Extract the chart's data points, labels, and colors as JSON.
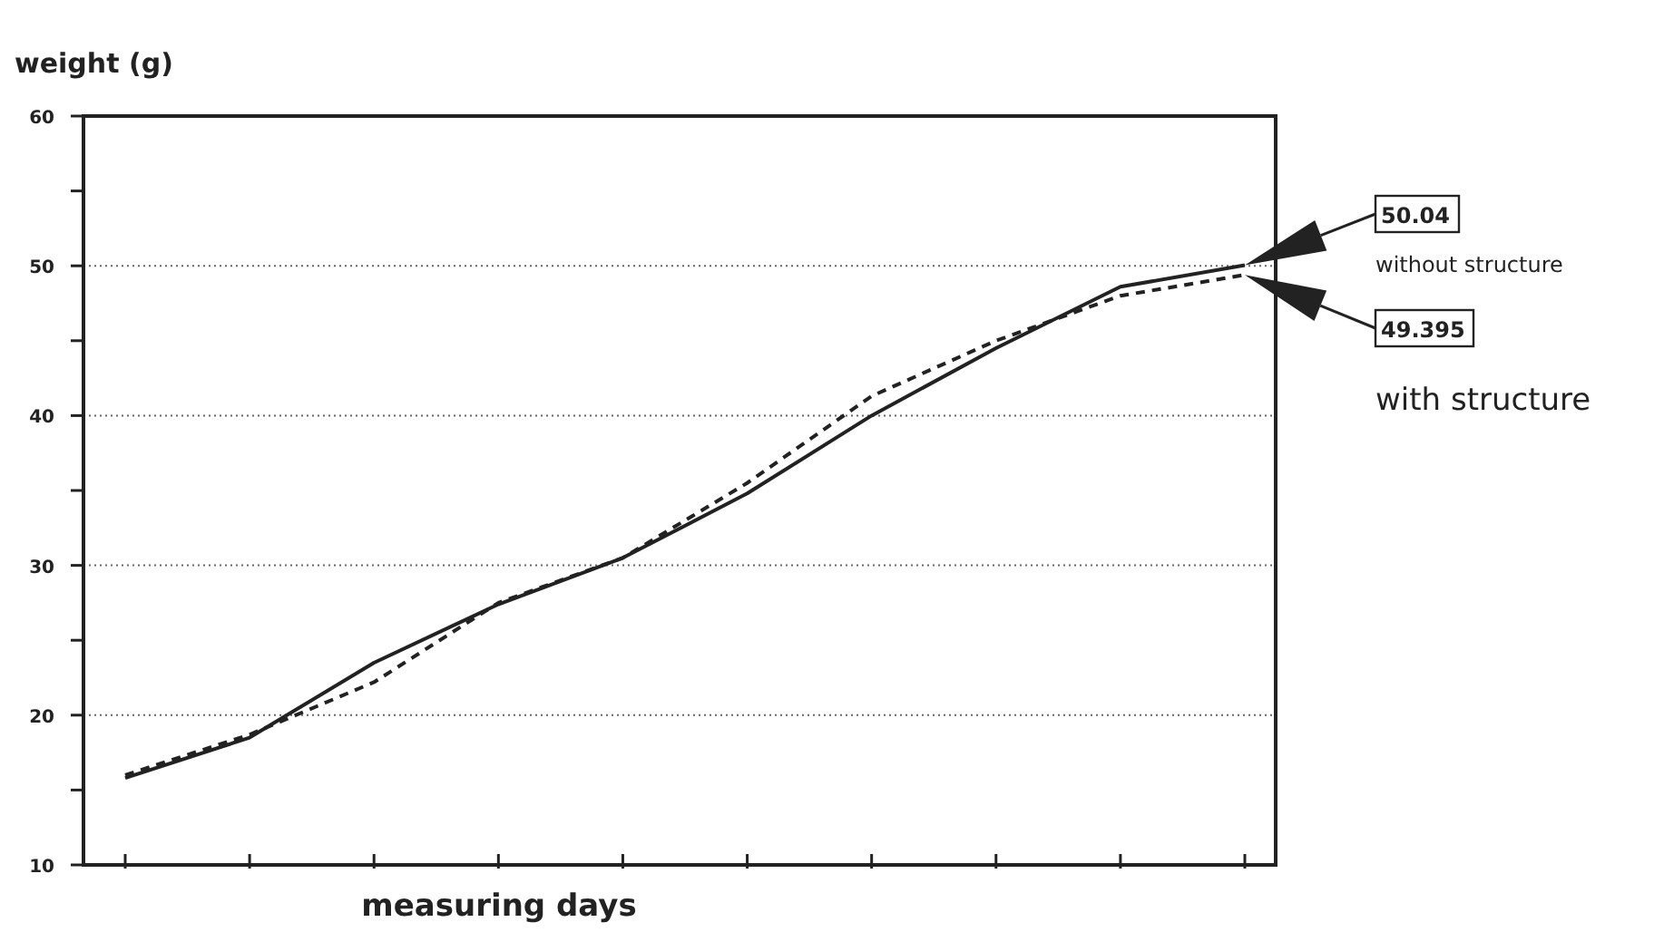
{
  "chart_data": {
    "type": "line",
    "ylabel": "weight (g)",
    "xlabel": "measuring days",
    "categories": [
      null,
      null,
      null,
      null,
      null,
      null,
      null,
      null,
      null,
      null
    ],
    "series": [
      {
        "name": "without structure",
        "color": "#222222",
        "line_style": "solid",
        "values": [
          15.8,
          18.5,
          23.5,
          27.4,
          30.5,
          34.8,
          40,
          44.5,
          48.6,
          50.04
        ]
      },
      {
        "name": "with structure",
        "color": "#222222",
        "line_style": "dashed",
        "values": [
          16,
          18.7,
          22.2,
          27.5,
          30.5,
          35.5,
          41.3,
          45,
          48,
          49.395
        ]
      }
    ],
    "annotations": [
      "50.04",
      "49.395"
    ],
    "ylim": [
      10,
      60
    ],
    "yticks": [
      10,
      {
        "value": 15,
        "label": null
      },
      20,
      {
        "value": 25,
        "label": null
      },
      30,
      {
        "value": 35,
        "label": null
      },
      40,
      {
        "value": 45,
        "label": null
      },
      50,
      {
        "value": 55,
        "label": null
      },
      60
    ],
    "grid": "y",
    "marker": "none",
    "legend": "right"
  }
}
